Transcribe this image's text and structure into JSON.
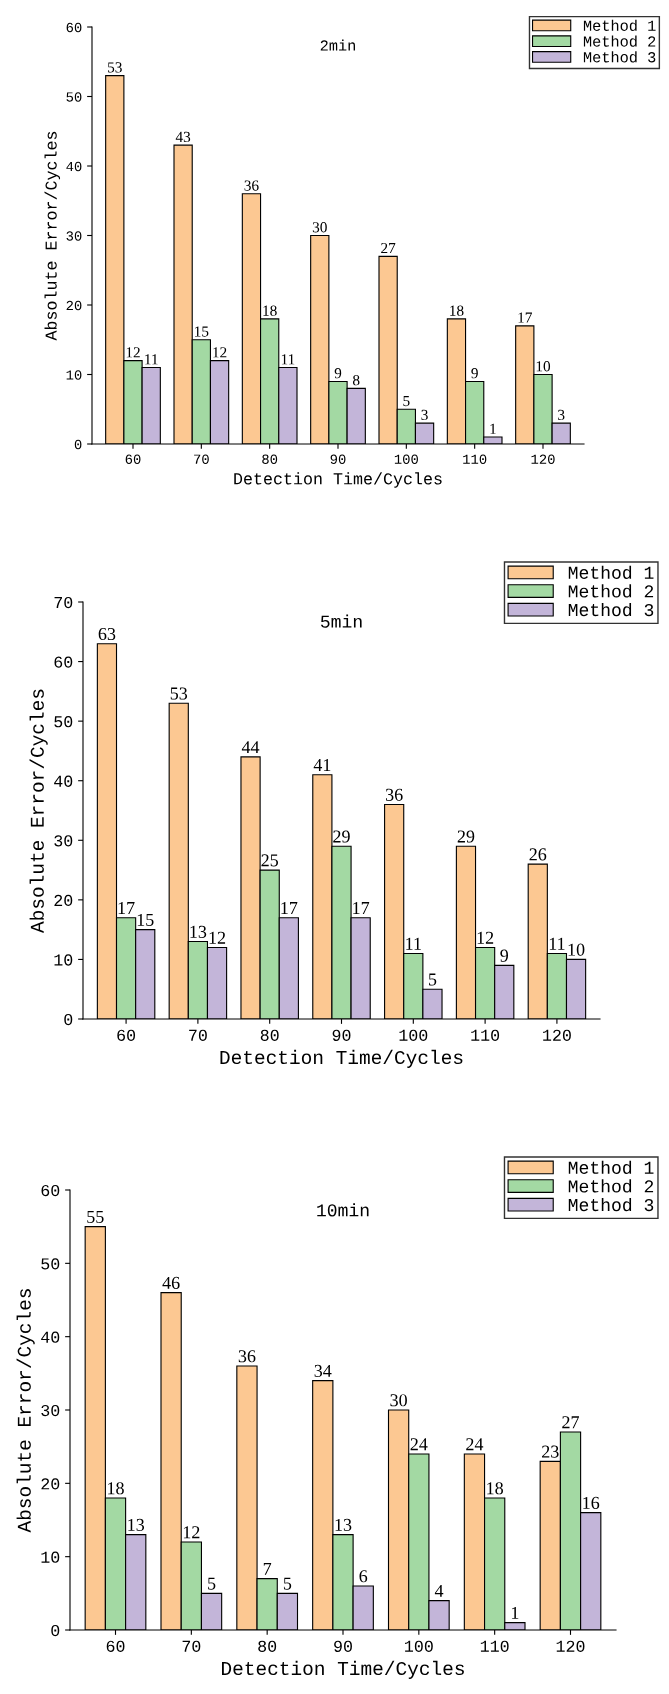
{
  "chart_data": [
    {
      "type": "bar",
      "title": "2min",
      "xlabel": "Detection Time/Cycles",
      "ylabel": "Absolute Error/Cycles",
      "categories": [
        "60",
        "70",
        "80",
        "90",
        "100",
        "110",
        "120"
      ],
      "ylim": [
        0,
        60
      ],
      "yticks": [
        0,
        10,
        20,
        30,
        40,
        50,
        60
      ],
      "legend": "top right",
      "data_labels": true,
      "series": [
        {
          "name": "Method 1",
          "color": "#fcc892",
          "values": [
            53,
            43,
            36,
            30,
            27,
            18,
            17
          ]
        },
        {
          "name": "Method 2",
          "color": "#a3d9a3",
          "values": [
            12,
            15,
            18,
            9,
            5,
            9,
            10
          ]
        },
        {
          "name": "Method 3",
          "color": "#c3b5d9",
          "values": [
            11,
            12,
            11,
            8,
            3,
            1,
            3
          ]
        }
      ]
    },
    {
      "type": "bar",
      "title": "5min",
      "xlabel": "Detection Time/Cycles",
      "ylabel": "Absolute Error/Cycles",
      "categories": [
        "60",
        "70",
        "80",
        "90",
        "100",
        "110",
        "120"
      ],
      "ylim": [
        0,
        70
      ],
      "yticks": [
        0,
        10,
        20,
        30,
        40,
        50,
        60,
        70
      ],
      "legend": "top right",
      "data_labels": true,
      "series": [
        {
          "name": "Method 1",
          "color": "#fcc892",
          "values": [
            63,
            53,
            44,
            41,
            36,
            29,
            26
          ]
        },
        {
          "name": "Method 2",
          "color": "#a3d9a3",
          "values": [
            17,
            13,
            25,
            29,
            11,
            12,
            11
          ]
        },
        {
          "name": "Method 3",
          "color": "#c3b5d9",
          "values": [
            15,
            12,
            17,
            17,
            5,
            9,
            10
          ]
        }
      ]
    },
    {
      "type": "bar",
      "title": "10min",
      "xlabel": "Detection Time/Cycles",
      "ylabel": "Absolute Error/Cycles",
      "categories": [
        "60",
        "70",
        "80",
        "90",
        "100",
        "110",
        "120"
      ],
      "ylim": [
        0,
        60
      ],
      "yticks": [
        0,
        10,
        20,
        30,
        40,
        50,
        60
      ],
      "legend": "top right",
      "data_labels": true,
      "series": [
        {
          "name": "Method 1",
          "color": "#fcc892",
          "values": [
            55,
            46,
            36,
            34,
            30,
            24,
            23
          ]
        },
        {
          "name": "Method 2",
          "color": "#a3d9a3",
          "values": [
            18,
            12,
            7,
            13,
            24,
            18,
            27
          ]
        },
        {
          "name": "Method 3",
          "color": "#c3b5d9",
          "values": [
            13,
            5,
            5,
            6,
            4,
            1,
            16
          ]
        }
      ]
    }
  ]
}
